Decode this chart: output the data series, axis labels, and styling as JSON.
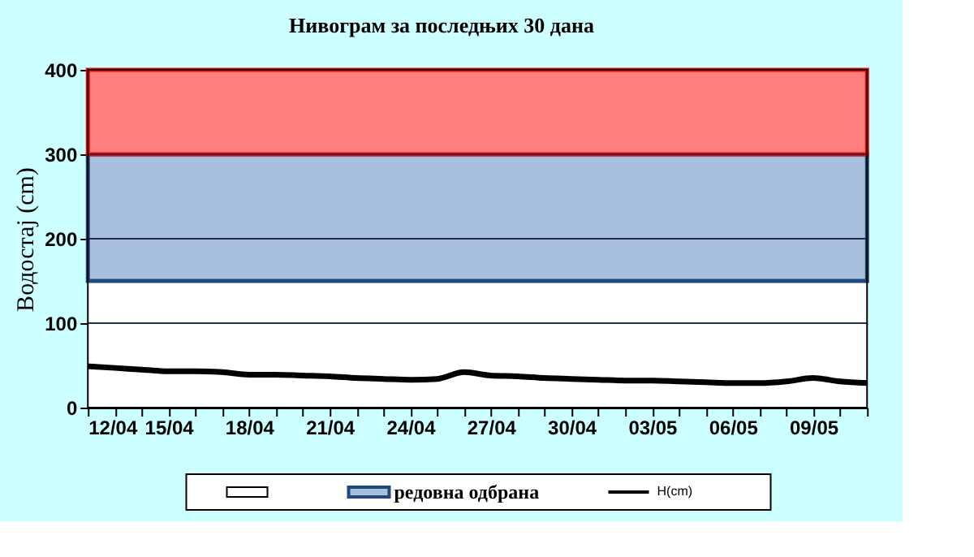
{
  "chart_data": {
    "type": "line",
    "title": "Нивограм за последњих 30 дана",
    "ylabel": "Водостај (cm)",
    "x": [
      "--04-12",
      "--04-13",
      "--04-14",
      "--04-15",
      "--04-16",
      "--04-17",
      "--04-18",
      "--04-19",
      "--04-20",
      "--04-21",
      "--04-22",
      "--04-23",
      "--04-24",
      "--04-25",
      "--04-26",
      "--04-27",
      "--04-28",
      "--04-29",
      "--04-30",
      "--05-01",
      "--05-02",
      "--05-03",
      "--05-04",
      "--05-05",
      "--05-06",
      "--05-07",
      "--05-08",
      "--05-09",
      "--05-10",
      "--05-11"
    ],
    "series": [
      {
        "name": "H(cm)",
        "color": "#000000",
        "values": [
          49,
          47,
          45,
          43,
          43,
          42,
          39,
          39,
          38,
          37,
          35,
          34,
          33,
          34,
          42,
          38,
          37,
          35,
          34,
          33,
          32,
          32,
          31,
          30,
          29,
          29,
          31,
          35,
          31,
          29
        ]
      }
    ],
    "xlim": [
      "--04-12",
      "--05-11"
    ],
    "xticks": [
      {
        "value": "--04-12",
        "label": "12/04"
      },
      {
        "value": "--04-13",
        "label": null
      },
      {
        "value": "--04-14",
        "label": null
      },
      {
        "value": "--04-15",
        "label": "15/04"
      },
      {
        "value": "--04-16",
        "label": null
      },
      {
        "value": "--04-17",
        "label": null
      },
      {
        "value": "--04-18",
        "label": "18/04"
      },
      {
        "value": "--04-19",
        "label": null
      },
      {
        "value": "--04-20",
        "label": null
      },
      {
        "value": "--04-21",
        "label": "21/04"
      },
      {
        "value": "--04-22",
        "label": null
      },
      {
        "value": "--04-23",
        "label": null
      },
      {
        "value": "--04-24",
        "label": "24/04"
      },
      {
        "value": "--04-25",
        "label": null
      },
      {
        "value": "--04-26",
        "label": null
      },
      {
        "value": "--04-27",
        "label": "27/04"
      },
      {
        "value": "--04-28",
        "label": null
      },
      {
        "value": "--04-29",
        "label": null
      },
      {
        "value": "--04-30",
        "label": "30/04"
      },
      {
        "value": "--05-01",
        "label": null
      },
      {
        "value": "--05-02",
        "label": null
      },
      {
        "value": "--05-03",
        "label": "03/05"
      },
      {
        "value": "--05-04",
        "label": null
      },
      {
        "value": "--05-05",
        "label": null
      },
      {
        "value": "--05-06",
        "label": "06/05"
      },
      {
        "value": "--05-07",
        "label": null
      },
      {
        "value": "--05-08",
        "label": null
      },
      {
        "value": "--05-09",
        "label": "09/05"
      },
      {
        "value": "--05-10",
        "label": null
      },
      {
        "value": "--05-11",
        "label": null
      }
    ],
    "ylim": [
      0,
      400
    ],
    "yticks": [
      0,
      100,
      200,
      300,
      400
    ],
    "grid": "y",
    "legend": "bottom",
    "marker": "none",
    "line_style": "solid",
    "bands": [
      {
        "axis": "y",
        "from": 0,
        "to": 150,
        "color": "#ffffff"
      },
      {
        "axis": "y",
        "from": 150,
        "to": 300,
        "label": "редовна одбрана",
        "color": "#a8bfdd"
      },
      {
        "axis": "y",
        "from": 300,
        "to": 400,
        "color": "#ff7f7f"
      }
    ]
  }
}
